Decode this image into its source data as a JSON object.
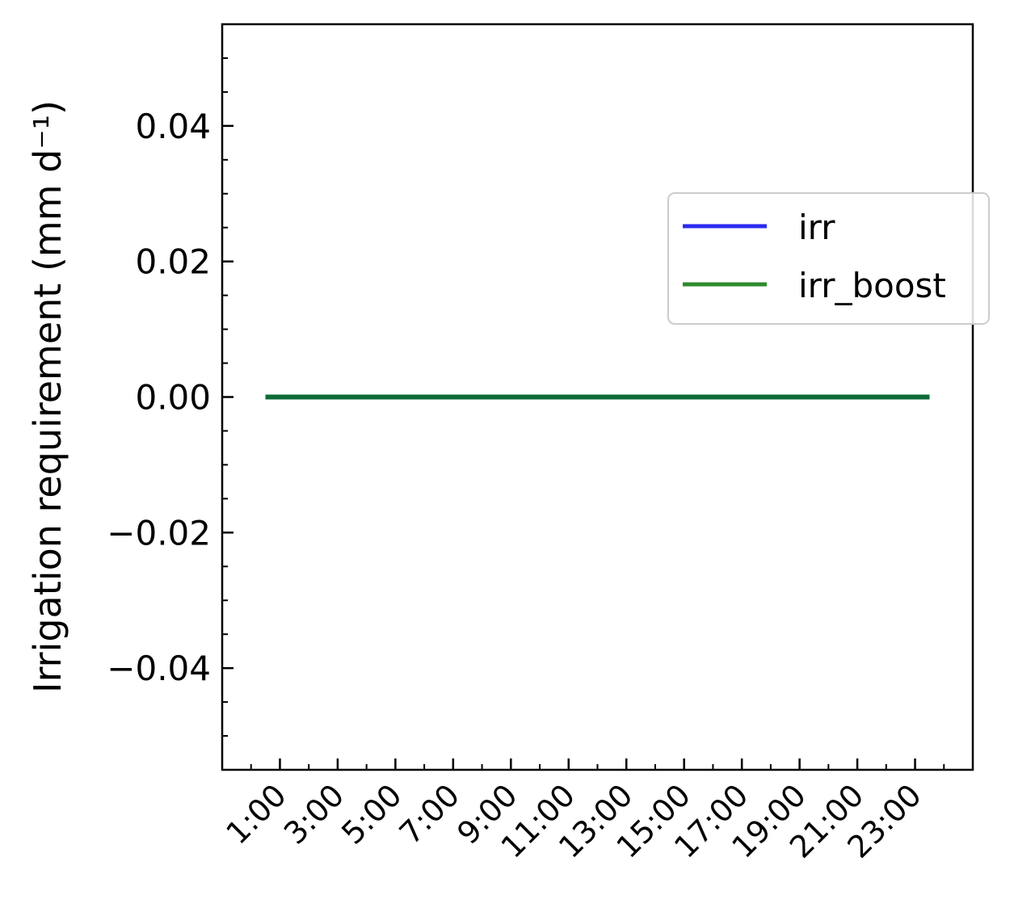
{
  "chart_data": {
    "type": "line",
    "title": "",
    "xlabel": "",
    "ylabel": "Irrigation requirement (mm d⁻¹)",
    "x": [
      "0:30",
      "1:30",
      "2:30",
      "3:30",
      "4:30",
      "5:30",
      "6:30",
      "7:30",
      "8:30",
      "9:30",
      "10:30",
      "11:30",
      "12:30",
      "13:30",
      "14:30",
      "15:30",
      "16:30",
      "17:30",
      "18:30",
      "19:30",
      "20:30",
      "21:30",
      "22:30",
      "23:30"
    ],
    "x_tick_labels": [
      "1:00",
      "3:00",
      "5:00",
      "7:00",
      "9:00",
      "11:00",
      "13:00",
      "15:00",
      "17:00",
      "19:00",
      "21:00",
      "23:00"
    ],
    "y_ticks": [
      -0.04,
      -0.02,
      0.0,
      0.02,
      0.04
    ],
    "y_tick_labels": [
      "−0.04",
      "−0.02",
      "0.00",
      "0.02",
      "0.04"
    ],
    "ylim": [
      -0.055,
      0.055
    ],
    "xlim_hours": [
      0.0,
      26.0
    ],
    "series": [
      {
        "name": "irr",
        "color": "#2b2bf0",
        "values": [
          0,
          0,
          0,
          0,
          0,
          0,
          0,
          0,
          0,
          0,
          0,
          0,
          0,
          0,
          0,
          0,
          0,
          0,
          0,
          0,
          0,
          0,
          0,
          0
        ]
      },
      {
        "name": "irr_boost",
        "color": "#2e8b2e",
        "values": [
          0,
          0,
          0,
          0,
          0,
          0,
          0,
          0,
          0,
          0,
          0,
          0,
          0,
          0,
          0,
          0,
          0,
          0,
          0,
          0,
          0,
          0,
          0,
          0
        ]
      }
    ],
    "overlap_color": "#0e6a38",
    "legend_placement": "center-right",
    "grid": false
  }
}
